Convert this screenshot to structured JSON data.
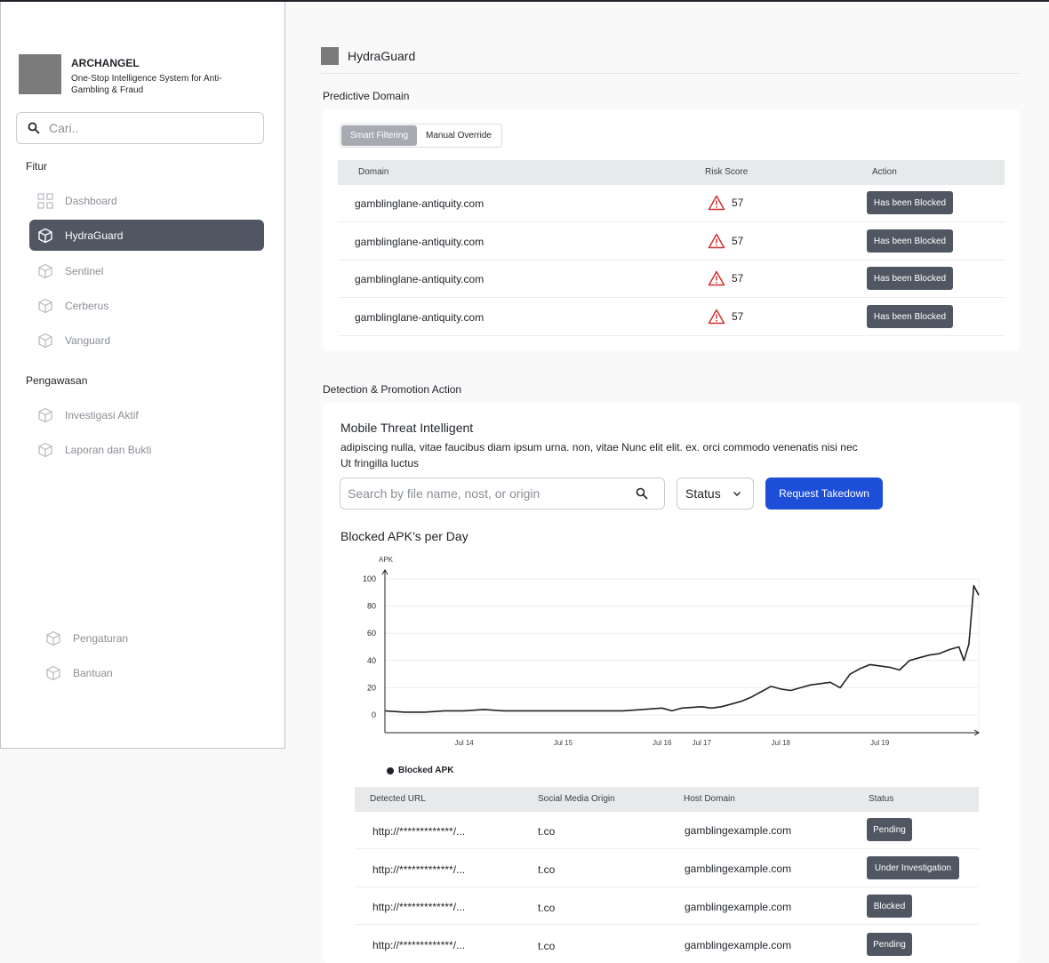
{
  "sidebar": {
    "brand_name": "ARCHANGEL",
    "brand_subtitle": "One-Stop Intelligence System for Anti-Gambling & Fraud",
    "search_placeholder": "Cari..",
    "section_fitur": "Fitur",
    "fitur_items": [
      {
        "label": "Dashboard",
        "icon": "grid-icon"
      },
      {
        "label": "HydraGuard",
        "icon": "cube-icon",
        "active": true
      },
      {
        "label": "Sentinel",
        "icon": "cube-icon"
      },
      {
        "label": "Cerberus",
        "icon": "cube-icon"
      },
      {
        "label": "Vanguard",
        "icon": "cube-icon"
      }
    ],
    "section_pengawasan": "Pengawasan",
    "pengawasan_items": [
      {
        "label": "Investigasi Aktif",
        "icon": "cube-icon"
      },
      {
        "label": "Laporan dan Bukti",
        "icon": "cube-icon"
      }
    ],
    "bottom_items": [
      {
        "label": "Pengaturan",
        "icon": "cube-icon"
      },
      {
        "label": "Bantuan",
        "icon": "cube-icon"
      }
    ]
  },
  "page": {
    "title": "HydraGuard"
  },
  "predictive": {
    "section_label": "Predictive Domain",
    "tabs": [
      "Smart Filtering",
      "Manual Override"
    ],
    "columns": [
      "Domain",
      "Risk Score",
      "Action"
    ],
    "rows": [
      {
        "domain": "gamblinglane-antiquity.com",
        "risk": "57",
        "action": "Has been Blocked"
      },
      {
        "domain": "gamblinglane-antiquity.com",
        "risk": "57",
        "action": "Has been Blocked"
      },
      {
        "domain": "gamblinglane-antiquity.com",
        "risk": "57",
        "action": "Has been Blocked"
      },
      {
        "domain": "gamblinglane-antiquity.com",
        "risk": "57",
        "action": "Has been Blocked"
      }
    ]
  },
  "detection": {
    "section_label": "Detection & Promotion Action",
    "card_title": "Mobile Threat Intelligent",
    "card_desc": "adipiscing nulla, vitae faucibus diam ipsum urna. non, vitae Nunc elit elit. ex. orci commodo venenatis nisi nec Ut fringilla luctus",
    "search_placeholder": "Search by file name, nost, or origin",
    "status_label": "Status",
    "request_button": "Request Takedown",
    "chart_title": "Blocked APK’s per Day",
    "columns": [
      "Detected URL",
      "Social Media Origin",
      "Host Domain",
      "Status"
    ],
    "rows": [
      {
        "url": "http://*************/...",
        "origin": "t.co",
        "host": "gamblingexample.com",
        "status": "Pending"
      },
      {
        "url": "http://*************/...",
        "origin": "t.co",
        "host": "gamblingexample.com",
        "status": "Under Investigation"
      },
      {
        "url": "http://*************/...",
        "origin": "t.co",
        "host": "gamblingexample.com",
        "status": "Blocked"
      },
      {
        "url": "http://*************/...",
        "origin": "t.co",
        "host": "gamblingexample.com",
        "status": "Pending"
      }
    ]
  },
  "chart_data": {
    "type": "line",
    "ylabel": "APK",
    "ylim": [
      0,
      100
    ],
    "yticks": [
      0,
      20,
      40,
      60,
      80,
      100
    ],
    "xticks": [
      "Jul 14",
      "Jul 15",
      "Jul 16",
      "Jul 17",
      "Jul 18",
      "Jul 19"
    ],
    "xtick_pos": [
      1.0,
      2.0,
      3.0,
      3.4,
      4.2,
      5.2
    ],
    "xlim": [
      0.2,
      6.2
    ],
    "legend": "Blocked APK",
    "legend_position": "bottom-left",
    "grid": true,
    "series": [
      {
        "name": "Blocked APK",
        "points": [
          [
            0.2,
            3
          ],
          [
            0.4,
            2
          ],
          [
            0.6,
            2
          ],
          [
            0.8,
            3
          ],
          [
            1.0,
            3
          ],
          [
            1.2,
            4
          ],
          [
            1.4,
            3
          ],
          [
            1.6,
            3
          ],
          [
            1.8,
            3
          ],
          [
            2.0,
            3
          ],
          [
            2.2,
            3
          ],
          [
            2.4,
            3
          ],
          [
            2.6,
            3
          ],
          [
            2.8,
            4
          ],
          [
            3.0,
            5
          ],
          [
            3.1,
            3
          ],
          [
            3.2,
            5
          ],
          [
            3.4,
            6
          ],
          [
            3.5,
            5
          ],
          [
            3.6,
            6
          ],
          [
            3.7,
            8
          ],
          [
            3.8,
            10
          ],
          [
            3.9,
            13
          ],
          [
            4.0,
            17
          ],
          [
            4.1,
            21
          ],
          [
            4.2,
            19
          ],
          [
            4.3,
            18
          ],
          [
            4.4,
            20
          ],
          [
            4.5,
            22
          ],
          [
            4.6,
            23
          ],
          [
            4.7,
            24
          ],
          [
            4.8,
            20
          ],
          [
            4.9,
            30
          ],
          [
            5.0,
            34
          ],
          [
            5.1,
            37
          ],
          [
            5.2,
            36
          ],
          [
            5.3,
            35
          ],
          [
            5.4,
            33
          ],
          [
            5.5,
            40
          ],
          [
            5.6,
            42
          ],
          [
            5.7,
            44
          ],
          [
            5.8,
            45
          ],
          [
            5.9,
            48
          ],
          [
            6.0,
            50
          ],
          [
            6.05,
            40
          ],
          [
            6.1,
            52
          ],
          [
            6.15,
            95
          ],
          [
            6.2,
            88
          ]
        ]
      }
    ]
  }
}
